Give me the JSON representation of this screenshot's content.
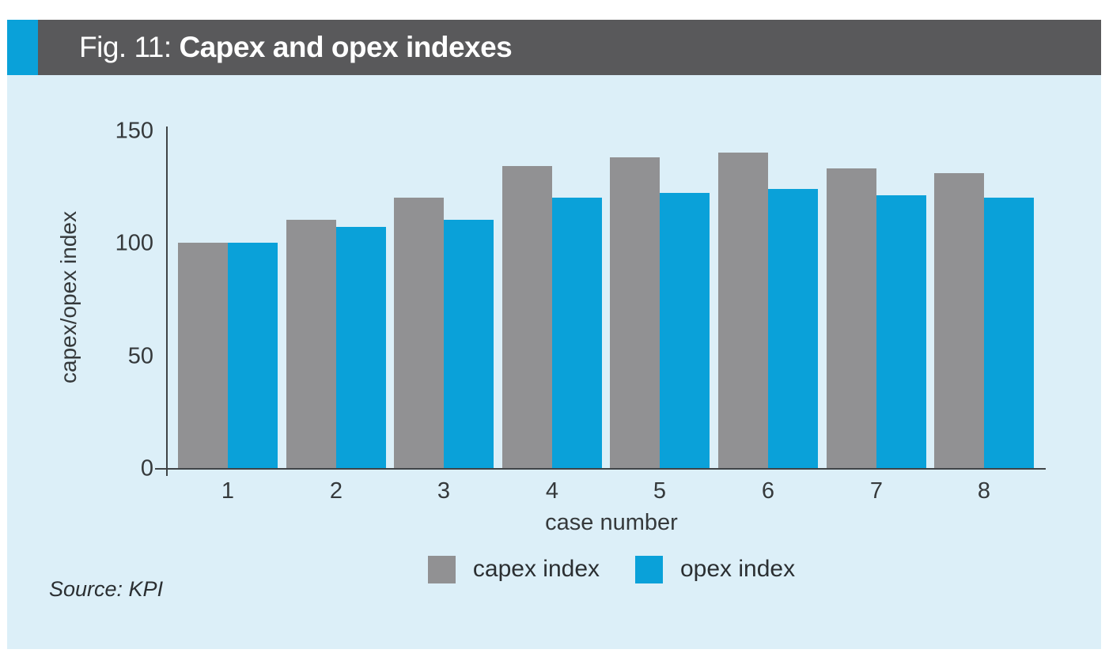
{
  "figure": {
    "label_prefix": "Fig. 11: ",
    "title": "Capex and opex indexes",
    "source": "Source: KPI"
  },
  "chart_data": {
    "type": "bar",
    "categories": [
      "1",
      "2",
      "3",
      "4",
      "5",
      "6",
      "7",
      "8"
    ],
    "series": [
      {
        "name": "capex index",
        "color": "#919193",
        "values": [
          100,
          110,
          120,
          134,
          138,
          140,
          133,
          131
        ]
      },
      {
        "name": "opex index",
        "color": "#0aa1d9",
        "values": [
          100,
          107,
          110,
          120,
          122,
          124,
          121,
          120
        ]
      }
    ],
    "title": "Capex and opex indexes",
    "xlabel": "case number",
    "ylabel": "capex/opex index",
    "yticks": [
      0,
      50,
      100,
      150
    ],
    "ylim": [
      0,
      150
    ],
    "grid": false,
    "legend_position": "bottom"
  },
  "colors": {
    "accent_blue": "#0aa1d9",
    "bar_gray": "#919193",
    "bar_blue": "#0aa1d9",
    "panel_background": "#dceff8",
    "header_background": "#59595b",
    "axis_text": "#35393b",
    "title_text": "#ffffff"
  }
}
